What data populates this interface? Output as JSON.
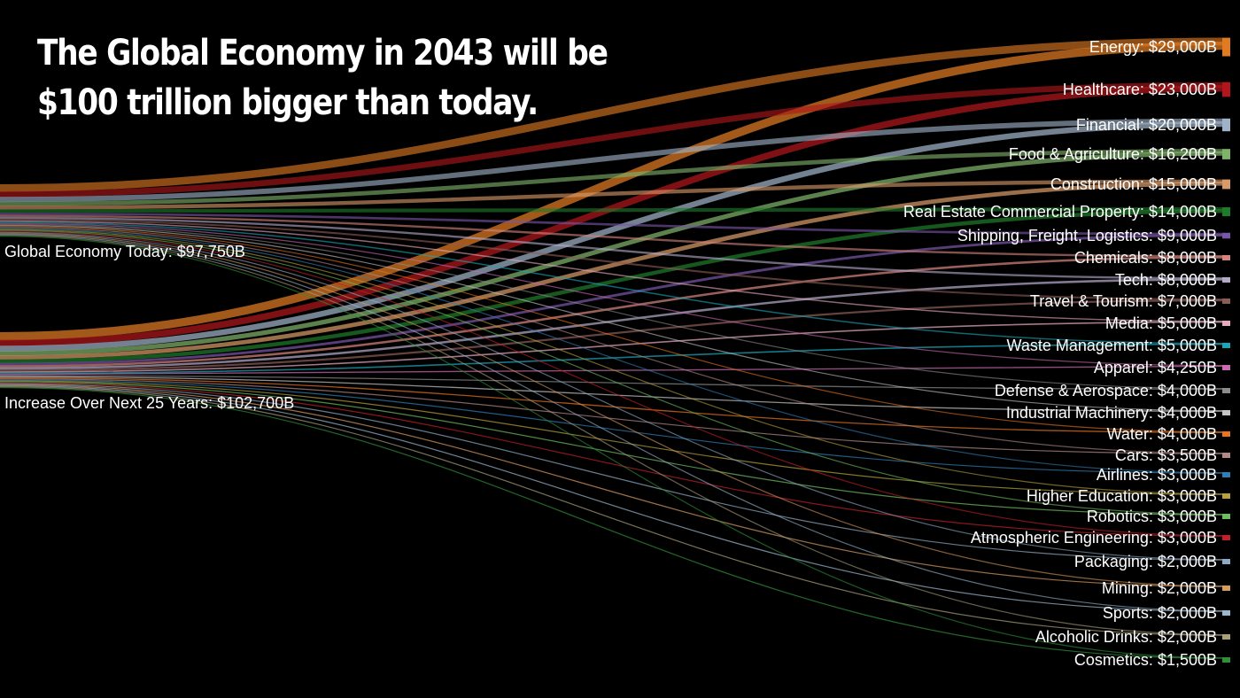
{
  "title": {
    "line1": "The Global Economy in 2043 will be",
    "line2": "$100 trillion bigger than today."
  },
  "chart_data": {
    "type": "sankey",
    "sources": [
      {
        "name": "Global Economy Today: $97,750B"
      },
      {
        "name": "Increase Over Next 25 Years: $102,700B"
      }
    ],
    "targets": [
      {
        "name": "Energy: $29,000B",
        "value": 29000,
        "color": "#e07b22"
      },
      {
        "name": "Healthcare: $23,000B",
        "value": 23000,
        "color": "#b0161b"
      },
      {
        "name": "Financial: $20,000B",
        "value": 20000,
        "color": "#9fb3c8"
      },
      {
        "name": "Food & Agriculture: $16,200B",
        "value": 16200,
        "color": "#7fb36a"
      },
      {
        "name": "Construction: $15,000B",
        "value": 15000,
        "color": "#d89a68"
      },
      {
        "name": "Real Estate Commercial Property: $14,000B",
        "value": 14000,
        "color": "#1f7a2a"
      },
      {
        "name": "Shipping, Freight, Logistics: $9,000B",
        "value": 9000,
        "color": "#7a56a8"
      },
      {
        "name": "Chemicals: $8,000B",
        "value": 8000,
        "color": "#d4847a"
      },
      {
        "name": "Tech: $8,000B",
        "value": 8000,
        "color": "#b3a9c9"
      },
      {
        "name": "Travel & Tourism: $7,000B",
        "value": 7000,
        "color": "#8a5c55"
      },
      {
        "name": "Media: $5,000B",
        "value": 5000,
        "color": "#e3a9bd"
      },
      {
        "name": "Waste Management: $5,000B",
        "value": 5000,
        "color": "#1aa7b8"
      },
      {
        "name": "Apparel: $4,250B",
        "value": 4250,
        "color": "#c86bb0"
      },
      {
        "name": "Defense & Aerospace: $4,000B",
        "value": 4000,
        "color": "#8c8c8c"
      },
      {
        "name": "Industrial Machinery: $4,000B",
        "value": 4000,
        "color": "#c5c5c5"
      },
      {
        "name": "Water: $4,000B",
        "value": 4000,
        "color": "#e8741f"
      },
      {
        "name": "Cars: $3,500B",
        "value": 3500,
        "color": "#b38b86"
      },
      {
        "name": "Airlines: $3,000B",
        "value": 3000,
        "color": "#2e7fb8"
      },
      {
        "name": "Higher Education: $3,000B",
        "value": 3000,
        "color": "#b8a23a"
      },
      {
        "name": "Robotics: $3,000B",
        "value": 3000,
        "color": "#6dbf5f"
      },
      {
        "name": "Atmospheric Engineering: $3,000B",
        "value": 3000,
        "color": "#c0202a"
      },
      {
        "name": "Packaging: $2,000B",
        "value": 2000,
        "color": "#8fa9c4"
      },
      {
        "name": "Mining: $2,000B",
        "value": 2000,
        "color": "#d99a5e"
      },
      {
        "name": "Sports: $2,000B",
        "value": 2000,
        "color": "#9ab7cf"
      },
      {
        "name": "Alcoholic Drinks: $2,000B",
        "value": 2000,
        "color": "#a9a07a"
      },
      {
        "name": "Cosmetics: $1,500B",
        "value": 1500,
        "color": "#2f8f3a"
      }
    ]
  }
}
